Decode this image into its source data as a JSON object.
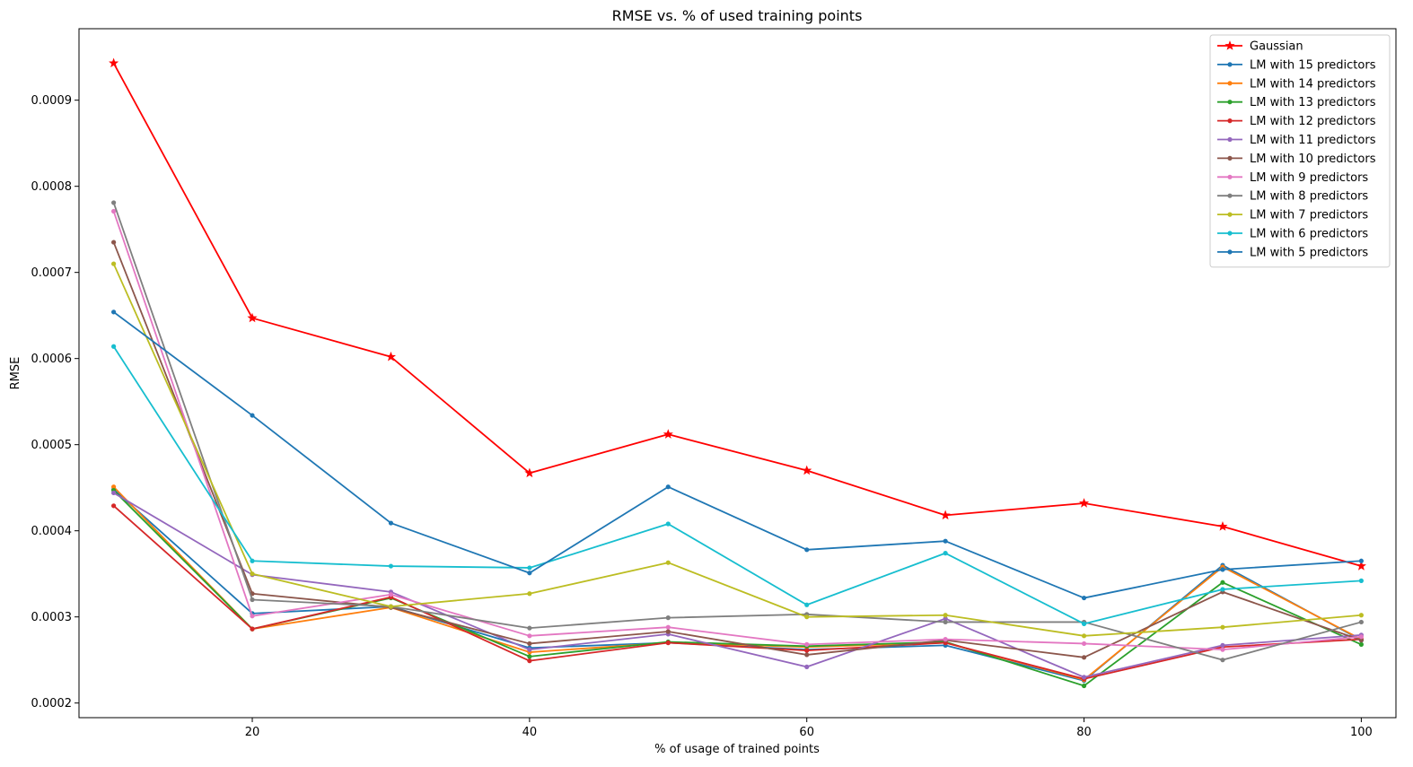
{
  "chart_data": {
    "type": "line",
    "title": "RMSE vs. % of used training points",
    "xlabel": "% of usage of trained points",
    "ylabel": "RMSE",
    "xlim": [
      7.5,
      102.5
    ],
    "ylim": [
      0.000183,
      0.000983
    ],
    "x": [
      10,
      20,
      30,
      40,
      50,
      60,
      70,
      80,
      90,
      100
    ],
    "xticks": [
      20,
      40,
      60,
      80,
      100
    ],
    "xtick_labels": [
      "20",
      "40",
      "60",
      "80",
      "100"
    ],
    "yticks": [
      0.0002,
      0.0003,
      0.0004,
      0.0005,
      0.0006,
      0.0007,
      0.0008,
      0.0009
    ],
    "ytick_labels": [
      "0.0002",
      "0.0003",
      "0.0004",
      "0.0005",
      "0.0006",
      "0.0007",
      "0.0008",
      "0.0009"
    ],
    "grid": false,
    "legend_position": "top-right",
    "series": [
      {
        "name": "Gaussian",
        "color": "#ff0000",
        "marker": "star",
        "values": [
          0.000943,
          0.000647,
          0.000602,
          0.000467,
          0.000512,
          0.00047,
          0.000418,
          0.000432,
          0.000405,
          0.000359
        ]
      },
      {
        "name": "LM with 15 predictors",
        "color": "#1f77b4",
        "marker": "dot",
        "values": [
          0.000448,
          0.000304,
          0.000312,
          0.000264,
          0.00027,
          0.000262,
          0.000267,
          0.000226,
          0.00036,
          0.000273
        ]
      },
      {
        "name": "LM with 14 predictors",
        "color": "#ff7f0e",
        "marker": "dot",
        "values": [
          0.000451,
          0.000286,
          0.000311,
          0.000259,
          0.00027,
          0.000265,
          0.00027,
          0.000227,
          0.000358,
          0.000274
        ]
      },
      {
        "name": "LM with 13 predictors",
        "color": "#2ca02c",
        "marker": "dot",
        "values": [
          0.000447,
          0.000286,
          0.000322,
          0.000254,
          0.000271,
          0.000266,
          0.000271,
          0.00022,
          0.00034,
          0.000268
        ]
      },
      {
        "name": "LM with 12 predictors",
        "color": "#d62728",
        "marker": "dot",
        "values": [
          0.000429,
          0.000286,
          0.000323,
          0.000249,
          0.00027,
          0.000261,
          0.00027,
          0.000228,
          0.000265,
          0.000274
        ]
      },
      {
        "name": "LM with 11 predictors",
        "color": "#9467bd",
        "marker": "dot",
        "values": [
          0.000444,
          0.000349,
          0.000329,
          0.000262,
          0.00028,
          0.000242,
          0.000298,
          0.00023,
          0.000267,
          0.000279
        ]
      },
      {
        "name": "LM with 10 predictors",
        "color": "#8c564b",
        "marker": "dot",
        "values": [
          0.000735,
          0.000327,
          0.000311,
          0.000269,
          0.000283,
          0.000256,
          0.000273,
          0.000253,
          0.000329,
          0.000273
        ]
      },
      {
        "name": "LM with 9 predictors",
        "color": "#e377c2",
        "marker": "dot",
        "values": [
          0.000771,
          0.000301,
          0.000326,
          0.000278,
          0.000288,
          0.000268,
          0.000274,
          0.000269,
          0.000262,
          0.000277
        ]
      },
      {
        "name": "LM with 8 predictors",
        "color": "#7f7f7f",
        "marker": "dot",
        "values": [
          0.000781,
          0.00032,
          0.000312,
          0.000287,
          0.000299,
          0.000303,
          0.000294,
          0.000294,
          0.00025,
          0.000294
        ]
      },
      {
        "name": "LM with 7 predictors",
        "color": "#bcbd22",
        "marker": "dot",
        "values": [
          0.00071,
          0.00035,
          0.000312,
          0.000327,
          0.000363,
          0.0003,
          0.000302,
          0.000278,
          0.000288,
          0.000302
        ]
      },
      {
        "name": "LM with 6 predictors",
        "color": "#17becf",
        "marker": "dot",
        "values": [
          0.000614,
          0.000365,
          0.000359,
          0.000357,
          0.000408,
          0.000314,
          0.000374,
          0.000292,
          0.000332,
          0.000342
        ]
      },
      {
        "name": "LM with 5 predictors",
        "color": "#1f77b4",
        "marker": "dot",
        "values": [
          0.000654,
          0.000534,
          0.000409,
          0.000351,
          0.000451,
          0.000378,
          0.000388,
          0.000322,
          0.000355,
          0.000365
        ]
      }
    ]
  }
}
